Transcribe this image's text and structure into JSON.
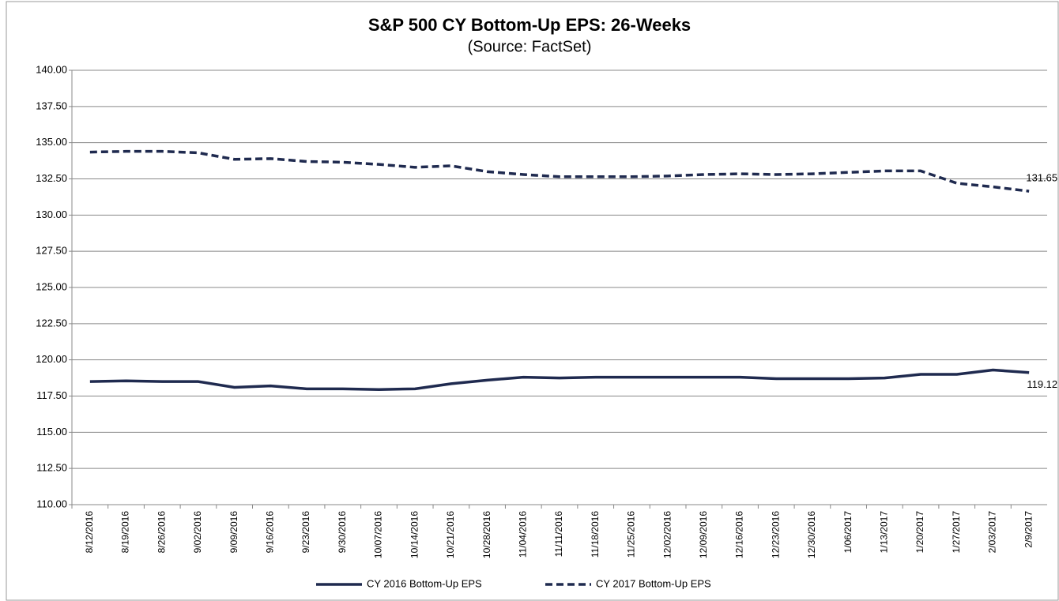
{
  "chart_data": {
    "type": "line",
    "title": "S&P 500 CY Bottom-Up EPS: 26-Weeks",
    "subtitle": "(Source: FactSet)",
    "categories": [
      "8/12/2016",
      "8/19/2016",
      "8/26/2016",
      "9/02/2016",
      "9/09/2016",
      "9/16/2016",
      "9/23/2016",
      "9/30/2016",
      "10/07/2016",
      "10/14/2016",
      "10/21/2016",
      "10/28/2016",
      "11/04/2016",
      "11/11/2016",
      "11/18/2016",
      "11/25/2016",
      "12/02/2016",
      "12/09/2016",
      "12/16/2016",
      "12/23/2016",
      "12/30/2016",
      "1/06/2017",
      "1/13/2017",
      "1/20/2017",
      "1/27/2017",
      "2/03/2017",
      "2/9/2017"
    ],
    "series": [
      {
        "name": "CY 2016 Bottom-Up EPS",
        "color": "#1f2a4f",
        "dashed": false,
        "values": [
          118.5,
          118.55,
          118.5,
          118.5,
          118.1,
          118.2,
          118.0,
          118.0,
          117.95,
          118.0,
          118.35,
          118.6,
          118.8,
          118.75,
          118.8,
          118.8,
          118.8,
          118.8,
          118.8,
          118.7,
          118.7,
          118.7,
          118.75,
          119.0,
          119.0,
          119.3,
          119.12
        ]
      },
      {
        "name": "CY 2017 Bottom-Up EPS",
        "color": "#1f2a4f",
        "dashed": true,
        "values": [
          134.35,
          134.4,
          134.4,
          134.3,
          133.85,
          133.9,
          133.7,
          133.65,
          133.5,
          133.3,
          133.4,
          133.0,
          132.8,
          132.65,
          132.65,
          132.65,
          132.7,
          132.8,
          132.85,
          132.8,
          132.85,
          132.95,
          133.05,
          133.05,
          132.2,
          131.95,
          131.65
        ]
      }
    ],
    "ylim": [
      110,
      140
    ],
    "yticks": [
      {
        "value": 110,
        "label": "110.00"
      },
      {
        "value": 112.5,
        "label": "112.50"
      },
      {
        "value": 115,
        "label": "115.00"
      },
      {
        "value": 117.5,
        "label": "117.50"
      },
      {
        "value": 120,
        "label": "120.00"
      },
      {
        "value": 122.5,
        "label": "122.50"
      },
      {
        "value": 125,
        "label": "125.00"
      },
      {
        "value": 127.5,
        "label": "127.50"
      },
      {
        "value": 130,
        "label": "130.00"
      },
      {
        "value": 132.5,
        "label": "132.50"
      },
      {
        "value": 135,
        "label": "135.00"
      },
      {
        "value": 137.5,
        "label": "137.50"
      },
      {
        "value": 140,
        "label": "140.00"
      }
    ],
    "grid": true,
    "legend": "bottom"
  }
}
